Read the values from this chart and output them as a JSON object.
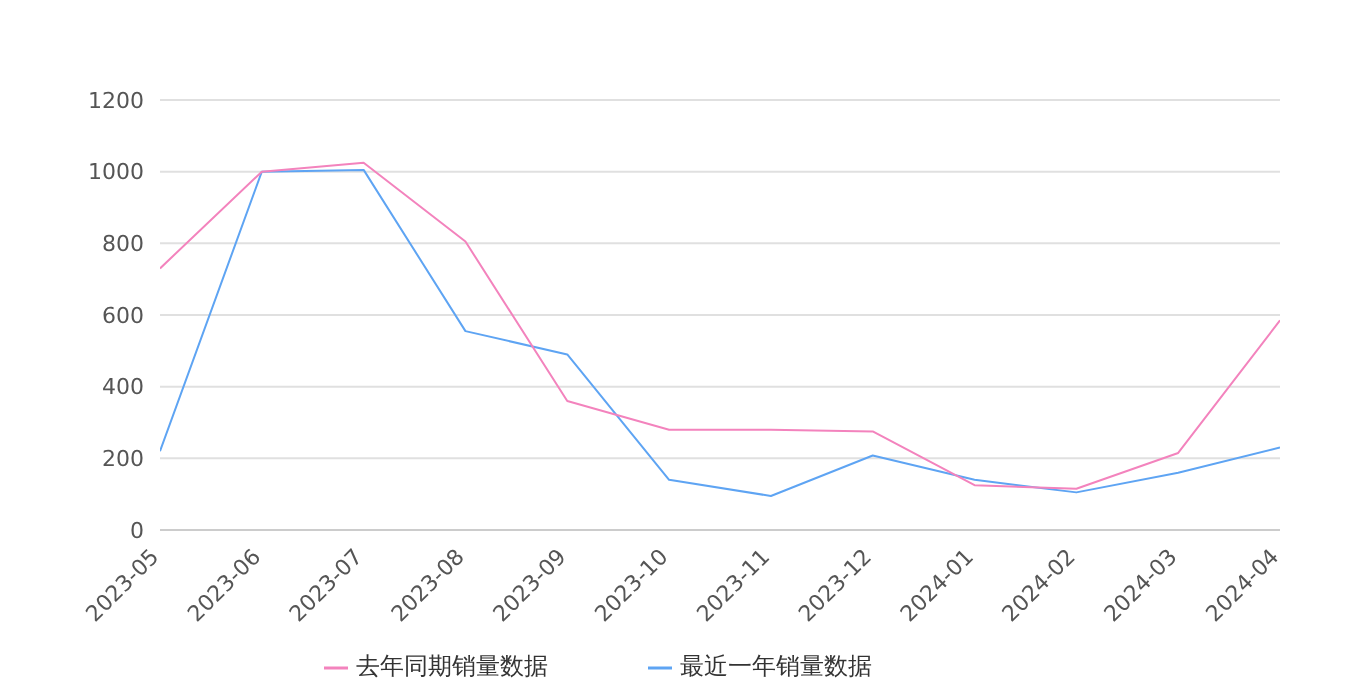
{
  "chart_data": {
    "type": "line",
    "categories": [
      "2023-05",
      "2023-06",
      "2023-07",
      "2023-08",
      "2023-09",
      "2023-10",
      "2023-11",
      "2023-12",
      "2024-01",
      "2024-02",
      "2024-03",
      "2024-04"
    ],
    "series": [
      {
        "name": "最近一年销量数据",
        "color": "#5ea4f3",
        "values": [
          220,
          1000,
          1005,
          555,
          490,
          140,
          95,
          208,
          140,
          105,
          160,
          230
        ]
      },
      {
        "name": "去年同期销量数据",
        "color": "#f383bd",
        "values": [
          730,
          1000,
          1025,
          805,
          360,
          280,
          280,
          275,
          125,
          115,
          215,
          585
        ]
      }
    ],
    "ylim": [
      0,
      1200
    ],
    "yticks": [
      0,
      200,
      400,
      600,
      800,
      1000,
      1200
    ],
    "grid": "y",
    "legend": "bottom",
    "marker": "none",
    "line_style": "solid"
  }
}
